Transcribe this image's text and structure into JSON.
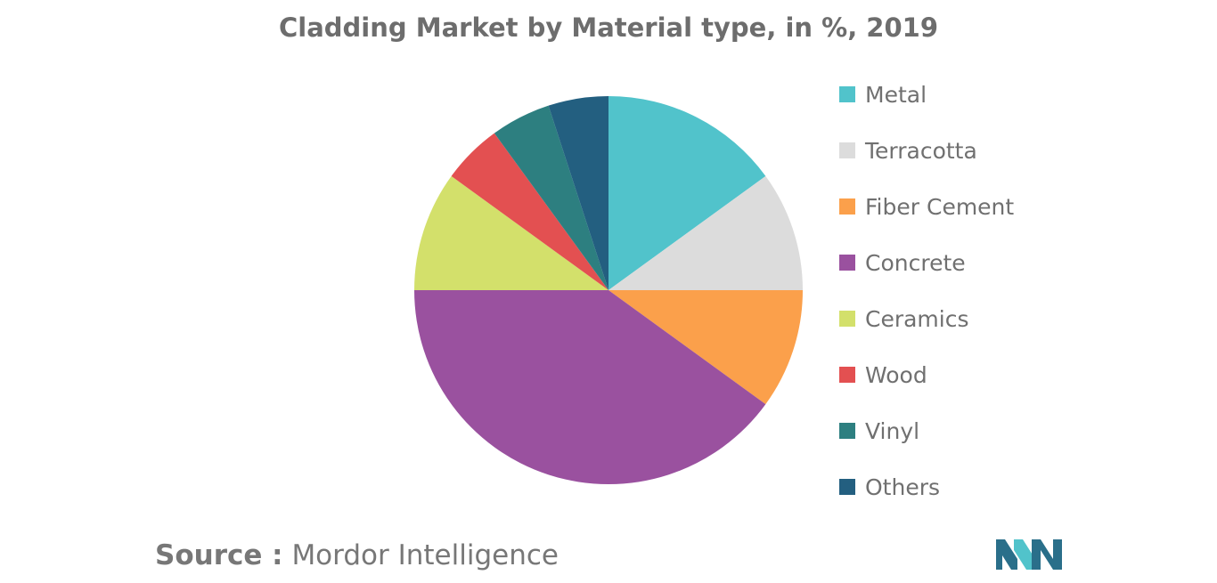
{
  "chart_data": {
    "type": "pie",
    "title": "Cladding Market by Material type, in %, 2019",
    "start_angle_deg": 0,
    "direction": "clockwise",
    "legend_position": "right",
    "slices": [
      {
        "label": "Metal",
        "value": 15,
        "color": "#51c3cb"
      },
      {
        "label": "Terracotta",
        "value": 10,
        "color": "#dcdcdc"
      },
      {
        "label": "Fiber Cement",
        "value": 10,
        "color": "#fba04b"
      },
      {
        "label": "Concrete",
        "value": 40,
        "color": "#9a519f"
      },
      {
        "label": "Ceramics",
        "value": 10,
        "color": "#d3e06b"
      },
      {
        "label": "Wood",
        "value": 5,
        "color": "#e35051"
      },
      {
        "label": "Vinyl",
        "value": 5,
        "color": "#2d7f80"
      },
      {
        "label": "Others",
        "value": 5,
        "color": "#235f80"
      }
    ]
  },
  "source": {
    "prefix": "Source :",
    "text": "Mordor Intelligence"
  },
  "logo": {
    "icon": "mordor-intelligence-logo-icon",
    "colors": [
      "#2a6f8a",
      "#51c3cb"
    ]
  }
}
